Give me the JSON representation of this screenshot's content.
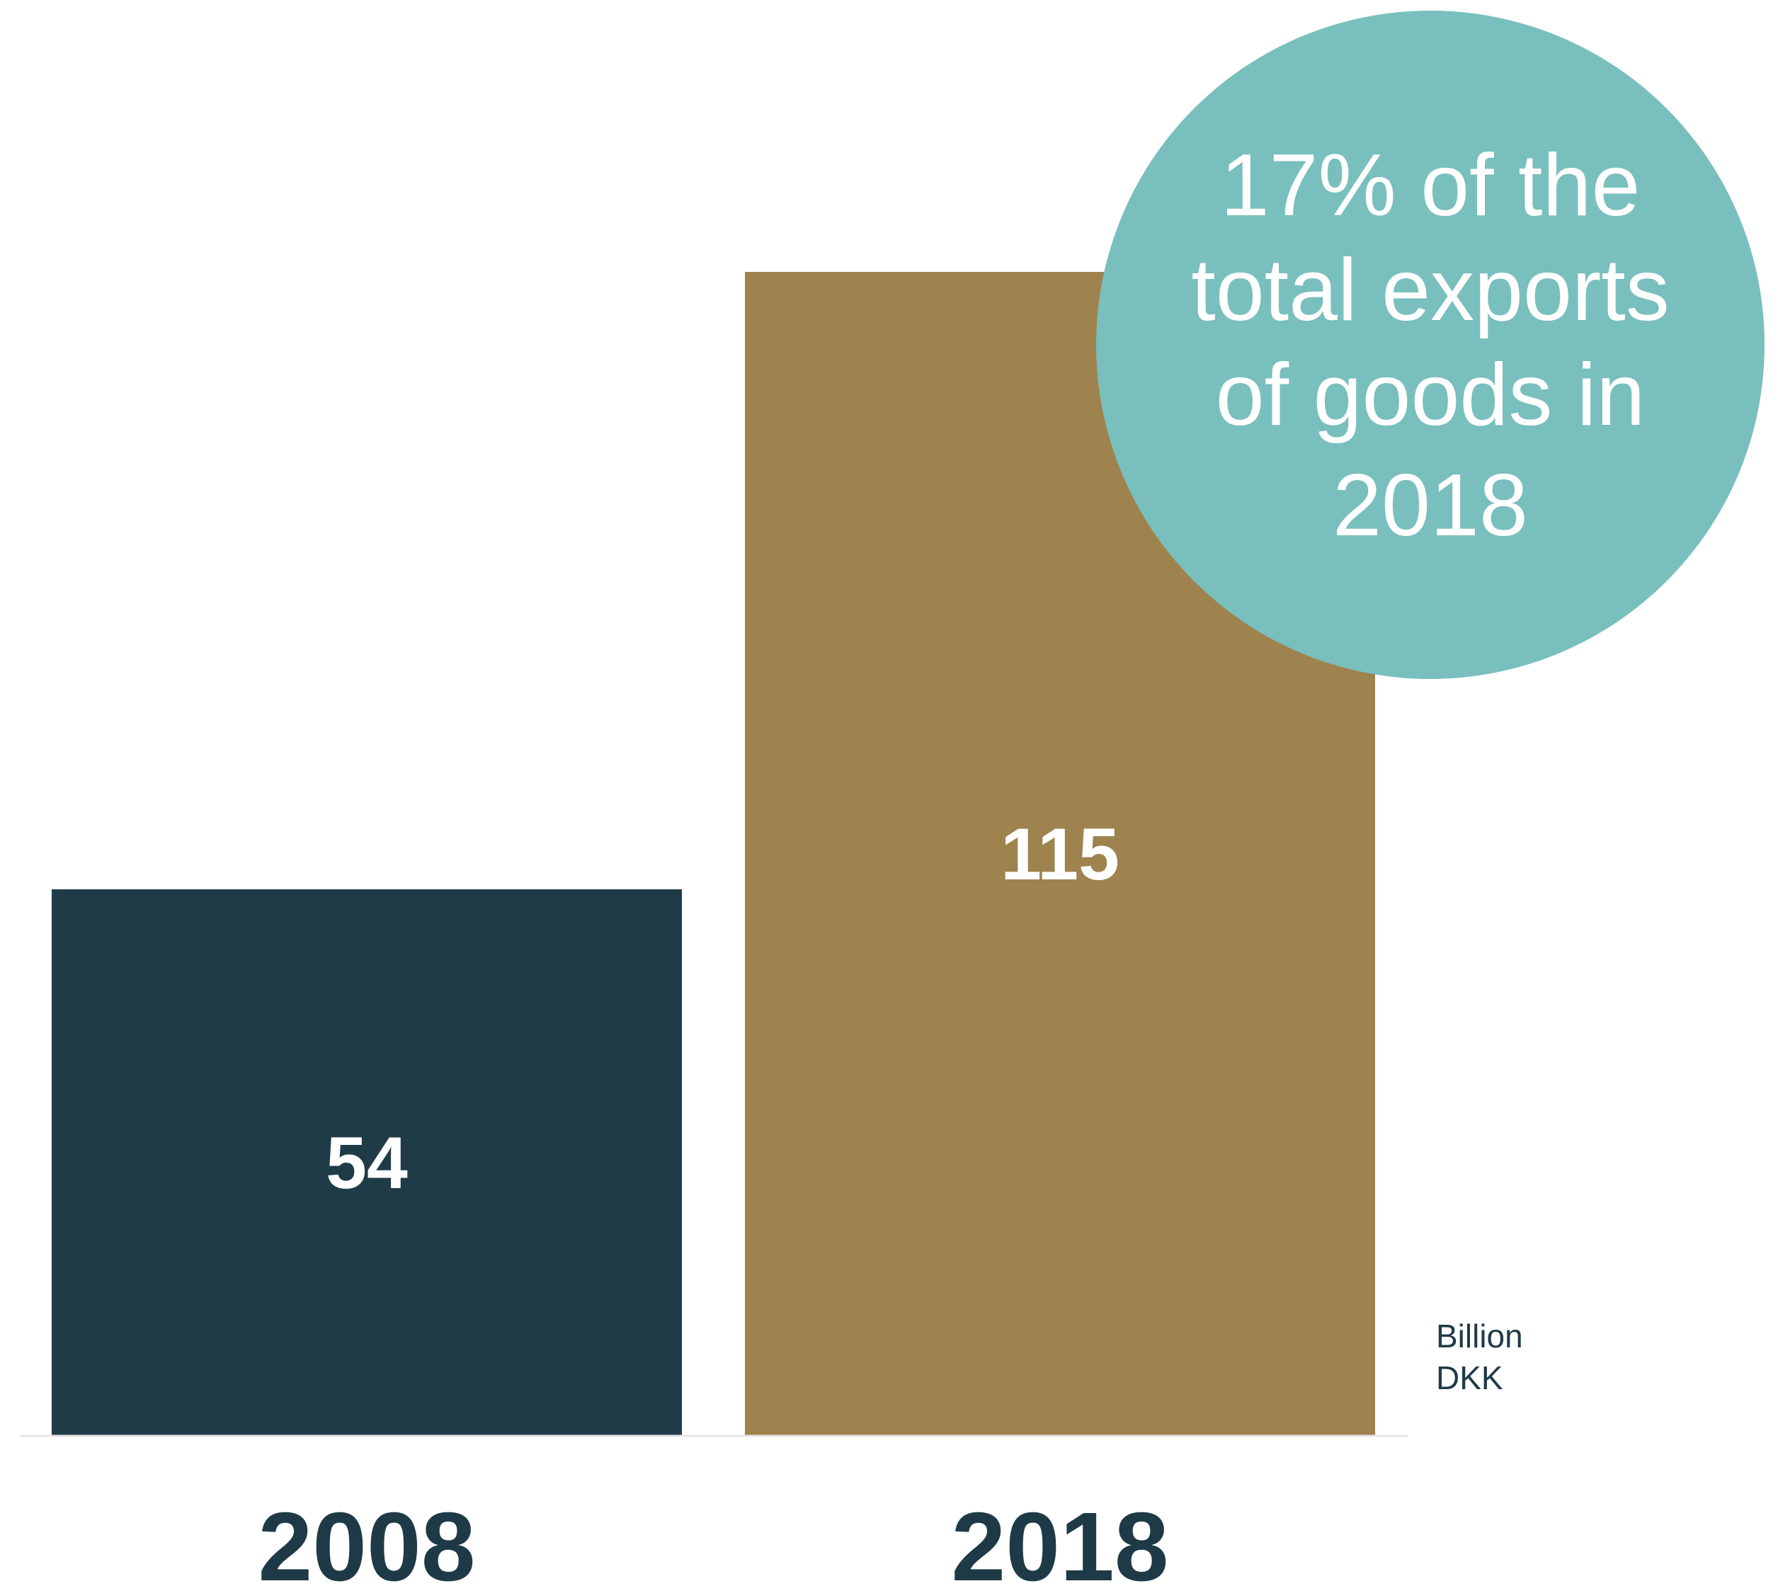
{
  "chart_data": {
    "type": "bar",
    "categories": [
      "2008",
      "2018"
    ],
    "values": [
      54,
      115
    ],
    "data_labels": [
      "54",
      "115"
    ],
    "unit_label": [
      "Billion",
      "DKK"
    ],
    "ylim": [
      0,
      115
    ],
    "grid": false,
    "legend": "none",
    "colors": [
      "#203b48",
      "#9e834f"
    ],
    "annotation": {
      "lines": [
        "17% of the",
        "total exports",
        "of goods in",
        "2018"
      ],
      "color": "#79bfbd"
    }
  },
  "colors": {
    "text": "#1f3a47",
    "axis": "#e6e6e6"
  }
}
